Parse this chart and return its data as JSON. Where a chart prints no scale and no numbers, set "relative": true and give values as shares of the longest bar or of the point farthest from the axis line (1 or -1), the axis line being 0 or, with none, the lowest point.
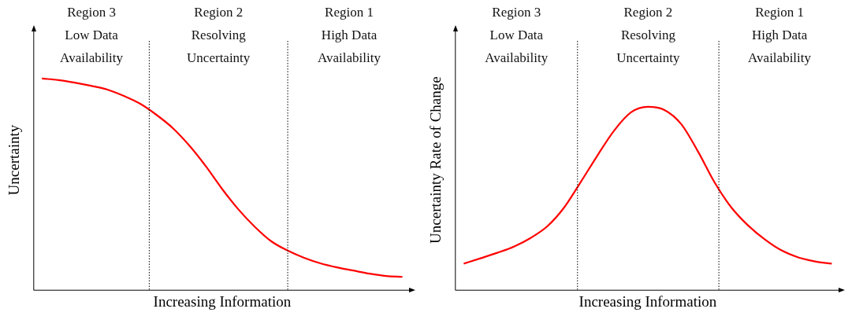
{
  "chart_data": [
    {
      "type": "line",
      "relative": true,
      "xlabel": "Increasing Information",
      "ylabel": "Uncertainty",
      "grid": false,
      "legend": false,
      "marker": "none",
      "line_style": "solid",
      "categories": [
        null,
        null,
        null,
        null,
        null,
        null,
        null,
        null,
        null,
        null,
        null,
        null,
        null,
        null,
        null,
        null,
        null,
        null,
        null,
        null,
        null,
        null,
        null
      ],
      "series": [
        {
          "color": "#ff0000",
          "values": [
            1.0,
            0.993,
            0.981,
            0.966,
            0.948,
            0.918,
            0.881,
            0.828,
            0.765,
            0.683,
            0.586,
            0.478,
            0.381,
            0.299,
            0.231,
            0.187,
            0.153,
            0.127,
            0.108,
            0.093,
            0.078,
            0.067,
            0.063
          ]
        }
      ],
      "annotations": [
        "Region 3\nLow Data\nAvailability",
        "Region 2\nResolving\nUncertainty",
        "Region 1\nHigh Data\nAvailability"
      ]
    },
    {
      "type": "line",
      "relative": true,
      "xlabel": "Increasing Information",
      "ylabel": "Uncertainty Rate of Change",
      "grid": false,
      "legend": false,
      "marker": "none",
      "line_style": "solid",
      "categories": [
        null,
        null,
        null,
        null,
        null,
        null,
        null,
        null,
        null,
        null,
        null,
        null,
        null,
        null,
        null,
        null,
        null,
        null,
        null,
        null,
        null,
        null,
        null
      ],
      "series": [
        {
          "color": "#ff0000",
          "values": [
            0.145,
            0.174,
            0.204,
            0.238,
            0.285,
            0.349,
            0.451,
            0.591,
            0.736,
            0.872,
            0.97,
            1.0,
            0.983,
            0.906,
            0.757,
            0.587,
            0.451,
            0.353,
            0.277,
            0.217,
            0.179,
            0.157,
            0.145
          ]
        }
      ],
      "annotations": [
        "Region 3\nLow Data\nAvailability",
        "Region 2\nResolving\nUncertainty",
        "Region 1\nHigh Data\nAvailability"
      ]
    }
  ]
}
